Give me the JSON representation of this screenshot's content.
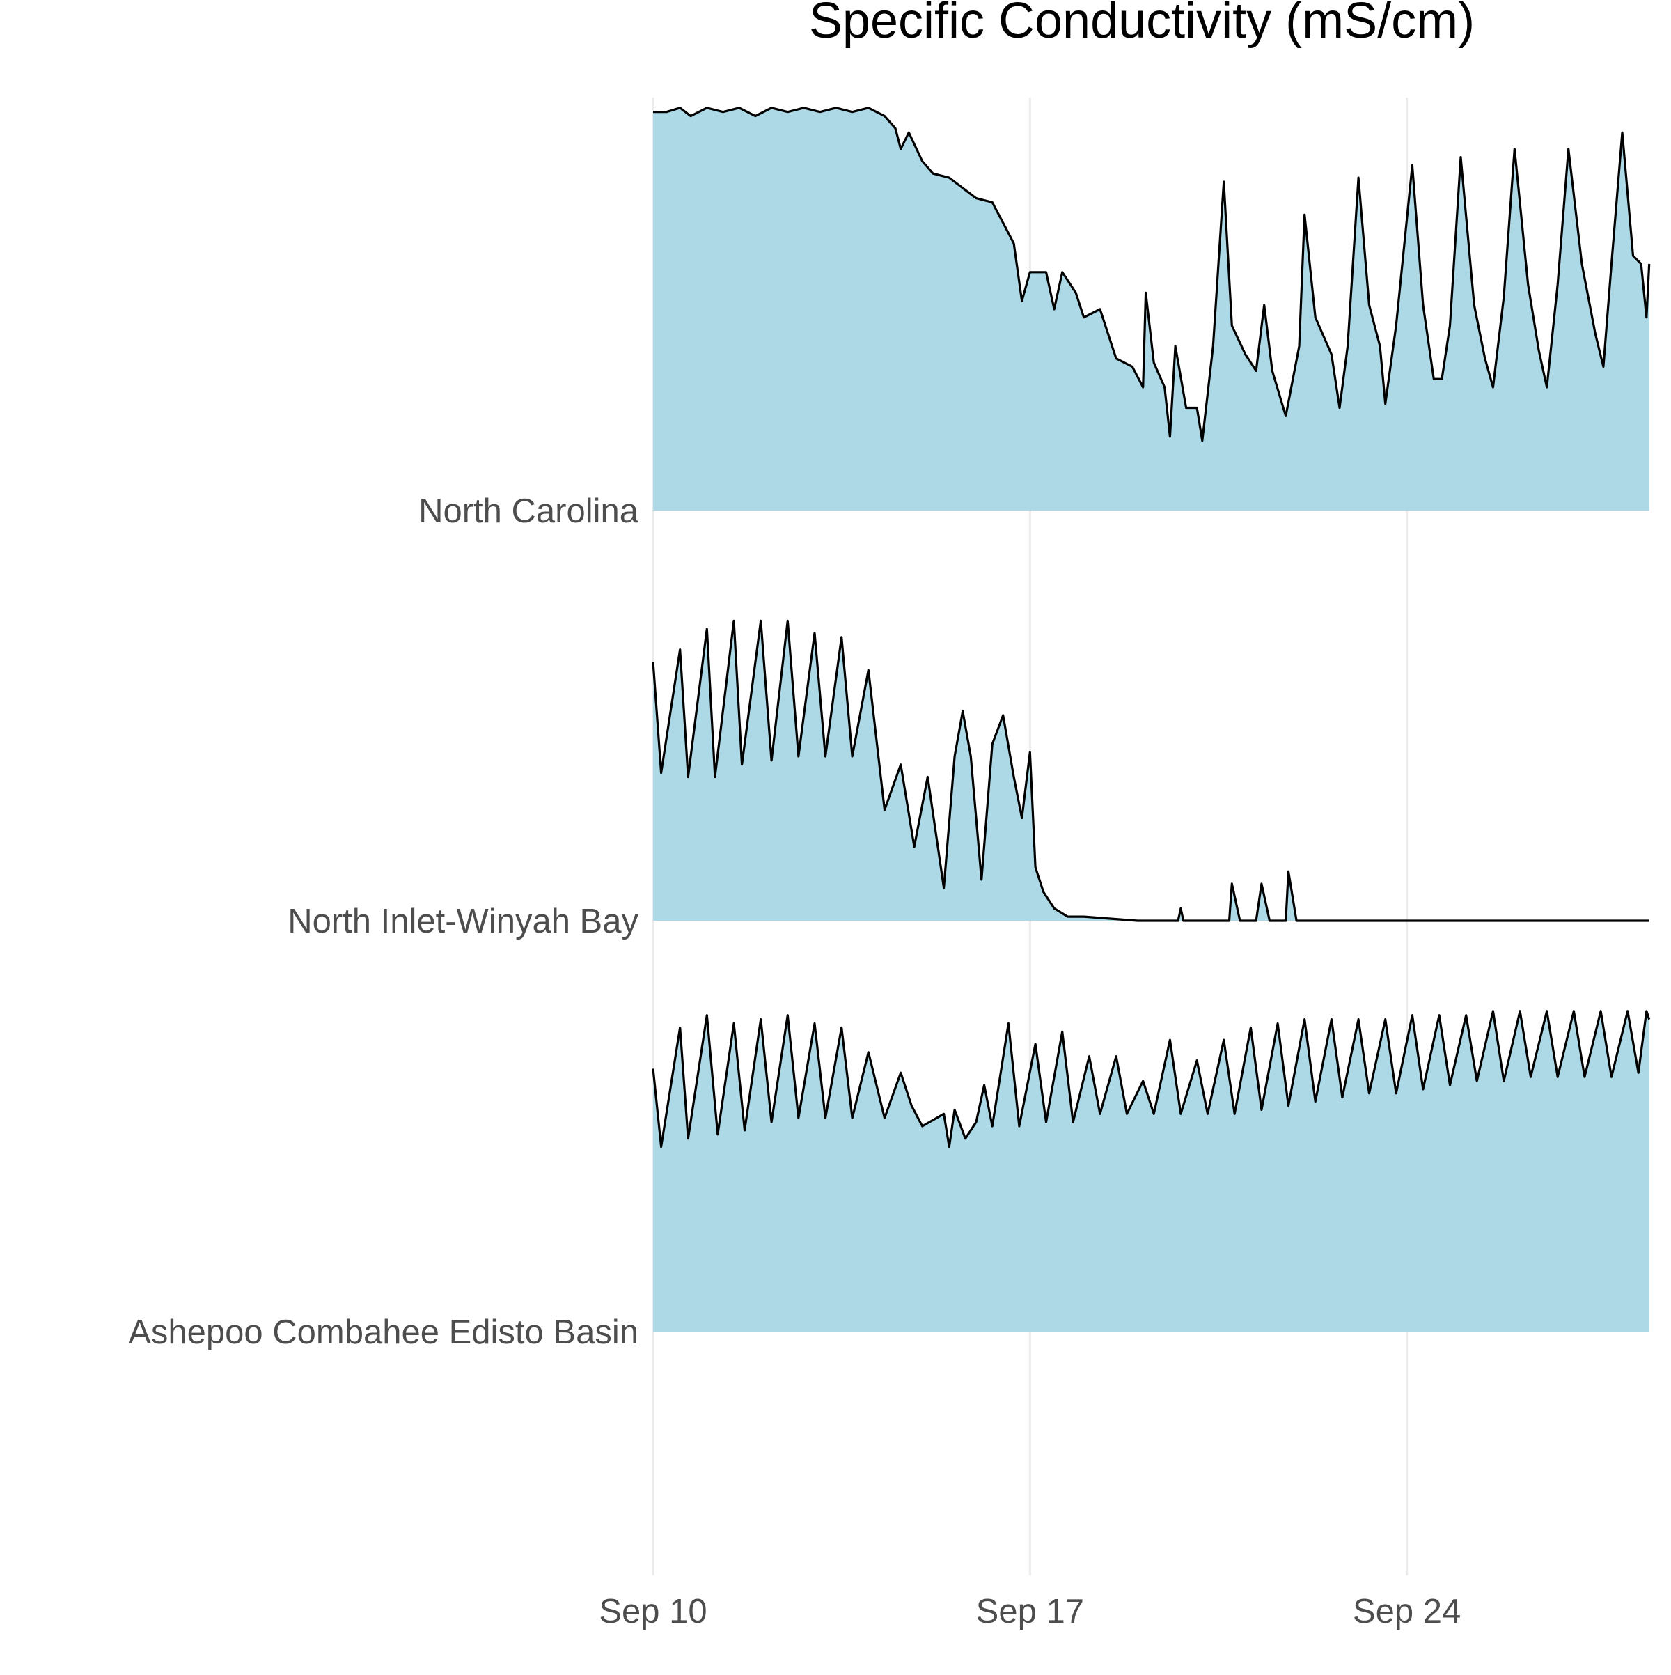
{
  "chart_data": {
    "type": "area",
    "subtype": "ridgeline",
    "title": "Specific Conductivity (mS/cm)",
    "xlabel": "",
    "ylabel": "",
    "x_axis": {
      "type": "date",
      "start": "Sep 10",
      "end": "Sep 28",
      "ticks": [
        "Sep 10",
        "Sep 17",
        "Sep 24"
      ]
    },
    "grid": "vertical-major",
    "legend": "none",
    "fill_color": "#add8e6",
    "line_color": "#000000",
    "series": [
      {
        "name": "North Carolina",
        "points": [
          [
            "Sep 10",
            0.97
          ],
          [
            "Sep 10.25",
            0.97
          ],
          [
            "Sep 10.5",
            0.98
          ],
          [
            "Sep 10.7",
            0.96
          ],
          [
            "Sep 11",
            0.98
          ],
          [
            "Sep 11.3",
            0.97
          ],
          [
            "Sep 11.6",
            0.98
          ],
          [
            "Sep 11.9",
            0.96
          ],
          [
            "Sep 12.2",
            0.98
          ],
          [
            "Sep 12.5",
            0.97
          ],
          [
            "Sep 12.8",
            0.98
          ],
          [
            "Sep 13.1",
            0.97
          ],
          [
            "Sep 13.4",
            0.98
          ],
          [
            "Sep 13.7",
            0.97
          ],
          [
            "Sep 14",
            0.98
          ],
          [
            "Sep 14.3",
            0.96
          ],
          [
            "Sep 14.5",
            0.93
          ],
          [
            "Sep 14.6",
            0.88
          ],
          [
            "Sep 14.75",
            0.92
          ],
          [
            "Sep 15",
            0.85
          ],
          [
            "Sep 15.2",
            0.82
          ],
          [
            "Sep 15.5",
            0.81
          ],
          [
            "Sep 15.8",
            0.78
          ],
          [
            "Sep 16",
            0.76
          ],
          [
            "Sep 16.3",
            0.75
          ],
          [
            "Sep 16.5",
            0.7
          ],
          [
            "Sep 16.7",
            0.65
          ],
          [
            "Sep 16.85",
            0.51
          ],
          [
            "Sep 17",
            0.58
          ],
          [
            "Sep 17.3",
            0.58
          ],
          [
            "Sep 17.45",
            0.49
          ],
          [
            "Sep 17.6",
            0.58
          ],
          [
            "Sep 17.85",
            0.53
          ],
          [
            "Sep 18",
            0.47
          ],
          [
            "Sep 18.3",
            0.49
          ],
          [
            "Sep 18.6",
            0.37
          ],
          [
            "Sep 18.9",
            0.35
          ],
          [
            "Sep 19.1",
            0.3
          ],
          [
            "Sep 19.15",
            0.53
          ],
          [
            "Sep 19.3",
            0.36
          ],
          [
            "Sep 19.5",
            0.3
          ],
          [
            "Sep 19.6",
            0.18
          ],
          [
            "Sep 19.7",
            0.4
          ],
          [
            "Sep 19.9",
            0.25
          ],
          [
            "Sep 20.1",
            0.25
          ],
          [
            "Sep 20.2",
            0.17
          ],
          [
            "Sep 20.4",
            0.4
          ],
          [
            "Sep 20.6",
            0.8
          ],
          [
            "Sep 20.75",
            0.45
          ],
          [
            "Sep 21",
            0.38
          ],
          [
            "Sep 21.2",
            0.34
          ],
          [
            "Sep 21.35",
            0.5
          ],
          [
            "Sep 21.5",
            0.34
          ],
          [
            "Sep 21.75",
            0.23
          ],
          [
            "Sep 22",
            0.4
          ],
          [
            "Sep 22.1",
            0.72
          ],
          [
            "Sep 22.3",
            0.47
          ],
          [
            "Sep 22.6",
            0.38
          ],
          [
            "Sep 22.75",
            0.25
          ],
          [
            "Sep 22.9",
            0.4
          ],
          [
            "Sep 23.1",
            0.81
          ],
          [
            "Sep 23.3",
            0.5
          ],
          [
            "Sep 23.5",
            0.4
          ],
          [
            "Sep 23.6",
            0.26
          ],
          [
            "Sep 23.8",
            0.45
          ],
          [
            "Sep 24.1",
            0.84
          ],
          [
            "Sep 24.3",
            0.5
          ],
          [
            "Sep 24.5",
            0.32
          ],
          [
            "Sep 24.65",
            0.32
          ],
          [
            "Sep 24.8",
            0.45
          ],
          [
            "Sep 25",
            0.86
          ],
          [
            "Sep 25.25",
            0.5
          ],
          [
            "Sep 25.45",
            0.37
          ],
          [
            "Sep 25.6",
            0.3
          ],
          [
            "Sep 25.8",
            0.52
          ],
          [
            "Sep 26",
            0.88
          ],
          [
            "Sep 26.25",
            0.55
          ],
          [
            "Sep 26.45",
            0.39
          ],
          [
            "Sep 26.6",
            0.3
          ],
          [
            "Sep 26.8",
            0.55
          ],
          [
            "Sep 27",
            0.88
          ],
          [
            "Sep 27.25",
            0.6
          ],
          [
            "Sep 27.5",
            0.43
          ],
          [
            "Sep 27.65",
            0.35
          ],
          [
            "Sep 27.8",
            0.6
          ],
          [
            "Sep 28",
            0.92
          ],
          [
            "Sep 28.2",
            0.62
          ],
          [
            "Sep 28.35",
            0.6
          ],
          [
            "Sep 28.45",
            0.47
          ],
          [
            "Sep 28.5",
            0.6
          ]
        ]
      },
      {
        "name": "North Inlet-Winyah Bay",
        "points": [
          [
            "Sep 10",
            0.63
          ],
          [
            "Sep 10.15",
            0.36
          ],
          [
            "Sep 10.5",
            0.66
          ],
          [
            "Sep 10.65",
            0.35
          ],
          [
            "Sep 11",
            0.71
          ],
          [
            "Sep 11.15",
            0.35
          ],
          [
            "Sep 11.5",
            0.73
          ],
          [
            "Sep 11.65",
            0.38
          ],
          [
            "Sep 12",
            0.73
          ],
          [
            "Sep 12.2",
            0.39
          ],
          [
            "Sep 12.5",
            0.73
          ],
          [
            "Sep 12.7",
            0.4
          ],
          [
            "Sep 13",
            0.7
          ],
          [
            "Sep 13.2",
            0.4
          ],
          [
            "Sep 13.5",
            0.69
          ],
          [
            "Sep 13.7",
            0.4
          ],
          [
            "Sep 14",
            0.61
          ],
          [
            "Sep 14.3",
            0.27
          ],
          [
            "Sep 14.6",
            0.38
          ],
          [
            "Sep 14.85",
            0.18
          ],
          [
            "Sep 15.1",
            0.35
          ],
          [
            "Sep 15.4",
            0.08
          ],
          [
            "Sep 15.6",
            0.4
          ],
          [
            "Sep 15.75",
            0.51
          ],
          [
            "Sep 15.9",
            0.4
          ],
          [
            "Sep 16.1",
            0.1
          ],
          [
            "Sep 16.3",
            0.43
          ],
          [
            "Sep 16.5",
            0.5
          ],
          [
            "Sep 16.7",
            0.35
          ],
          [
            "Sep 16.85",
            0.25
          ],
          [
            "Sep 17",
            0.41
          ],
          [
            "Sep 17.1",
            0.13
          ],
          [
            "Sep 17.25",
            0.07
          ],
          [
            "Sep 17.45",
            0.03
          ],
          [
            "Sep 17.7",
            0.01
          ],
          [
            "Sep 18",
            0.01
          ],
          [
            "Sep 19",
            0.0
          ],
          [
            "Sep 19.75",
            0.0
          ],
          [
            "Sep 19.8",
            0.03
          ],
          [
            "Sep 19.85",
            0.0
          ],
          [
            "Sep 20.7",
            0.0
          ],
          [
            "Sep 20.75",
            0.09
          ],
          [
            "Sep 20.9",
            0.0
          ],
          [
            "Sep 21.2",
            0.0
          ],
          [
            "Sep 21.3",
            0.09
          ],
          [
            "Sep 21.45",
            0.0
          ],
          [
            "Sep 21.75",
            0.0
          ],
          [
            "Sep 21.8",
            0.12
          ],
          [
            "Sep 21.95",
            0.0
          ],
          [
            "Sep 28.5",
            0.0
          ]
        ]
      },
      {
        "name": "Ashepoo Combahee Edisto Basin",
        "points": [
          [
            "Sep 10",
            0.64
          ],
          [
            "Sep 10.15",
            0.45
          ],
          [
            "Sep 10.5",
            0.74
          ],
          [
            "Sep 10.65",
            0.47
          ],
          [
            "Sep 11",
            0.77
          ],
          [
            "Sep 11.2",
            0.48
          ],
          [
            "Sep 11.5",
            0.75
          ],
          [
            "Sep 11.7",
            0.49
          ],
          [
            "Sep 12",
            0.76
          ],
          [
            "Sep 12.2",
            0.51
          ],
          [
            "Sep 12.5",
            0.77
          ],
          [
            "Sep 12.7",
            0.52
          ],
          [
            "Sep 13",
            0.75
          ],
          [
            "Sep 13.2",
            0.52
          ],
          [
            "Sep 13.5",
            0.74
          ],
          [
            "Sep 13.7",
            0.52
          ],
          [
            "Sep 14",
            0.68
          ],
          [
            "Sep 14.3",
            0.52
          ],
          [
            "Sep 14.6",
            0.63
          ],
          [
            "Sep 14.8",
            0.55
          ],
          [
            "Sep 15",
            0.5
          ],
          [
            "Sep 15.4",
            0.53
          ],
          [
            "Sep 15.5",
            0.45
          ],
          [
            "Sep 15.6",
            0.54
          ],
          [
            "Sep 15.8",
            0.47
          ],
          [
            "Sep 16",
            0.51
          ],
          [
            "Sep 16.15",
            0.6
          ],
          [
            "Sep 16.3",
            0.5
          ],
          [
            "Sep 16.6",
            0.75
          ],
          [
            "Sep 16.8",
            0.5
          ],
          [
            "Sep 17.1",
            0.7
          ],
          [
            "Sep 17.3",
            0.51
          ],
          [
            "Sep 17.6",
            0.73
          ],
          [
            "Sep 17.8",
            0.51
          ],
          [
            "Sep 18.1",
            0.67
          ],
          [
            "Sep 18.3",
            0.53
          ],
          [
            "Sep 18.6",
            0.67
          ],
          [
            "Sep 18.8",
            0.53
          ],
          [
            "Sep 19.1",
            0.61
          ],
          [
            "Sep 19.3",
            0.53
          ],
          [
            "Sep 19.6",
            0.71
          ],
          [
            "Sep 19.8",
            0.53
          ],
          [
            "Sep 20.1",
            0.66
          ],
          [
            "Sep 20.3",
            0.53
          ],
          [
            "Sep 20.6",
            0.71
          ],
          [
            "Sep 20.8",
            0.53
          ],
          [
            "Sep 21.1",
            0.74
          ],
          [
            "Sep 21.3",
            0.54
          ],
          [
            "Sep 21.6",
            0.75
          ],
          [
            "Sep 21.8",
            0.55
          ],
          [
            "Sep 22.1",
            0.76
          ],
          [
            "Sep 22.3",
            0.56
          ],
          [
            "Sep 22.6",
            0.76
          ],
          [
            "Sep 22.8",
            0.57
          ],
          [
            "Sep 23.1",
            0.76
          ],
          [
            "Sep 23.3",
            0.58
          ],
          [
            "Sep 23.6",
            0.76
          ],
          [
            "Sep 23.8",
            0.58
          ],
          [
            "Sep 24.1",
            0.77
          ],
          [
            "Sep 24.3",
            0.59
          ],
          [
            "Sep 24.6",
            0.77
          ],
          [
            "Sep 24.8",
            0.6
          ],
          [
            "Sep 25.1",
            0.77
          ],
          [
            "Sep 25.3",
            0.61
          ],
          [
            "Sep 25.6",
            0.78
          ],
          [
            "Sep 25.8",
            0.61
          ],
          [
            "Sep 26.1",
            0.78
          ],
          [
            "Sep 26.3",
            0.62
          ],
          [
            "Sep 26.6",
            0.78
          ],
          [
            "Sep 26.8",
            0.62
          ],
          [
            "Sep 27.1",
            0.78
          ],
          [
            "Sep 27.3",
            0.62
          ],
          [
            "Sep 27.6",
            0.78
          ],
          [
            "Sep 27.8",
            0.62
          ],
          [
            "Sep 28.1",
            0.78
          ],
          [
            "Sep 28.3",
            0.63
          ],
          [
            "Sep 28.45",
            0.78
          ],
          [
            "Sep 28.5",
            0.76
          ]
        ]
      }
    ]
  }
}
